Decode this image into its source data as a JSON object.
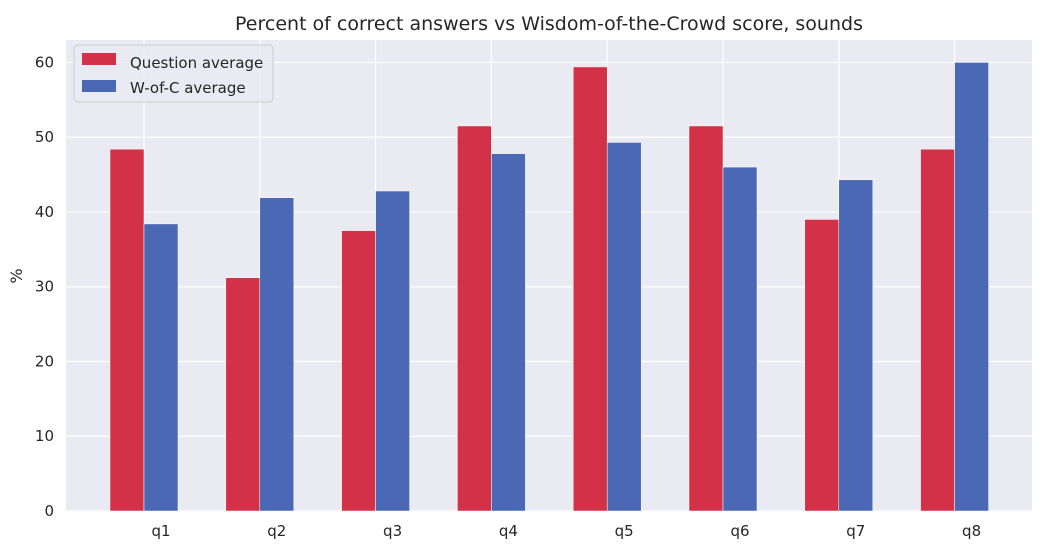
{
  "chart_data": {
    "type": "bar",
    "title": "Percent of correct answers vs Wisdom-of-the-Crowd score, sounds",
    "xlabel": "",
    "ylabel": "%",
    "categories": [
      "q1",
      "q2",
      "q3",
      "q4",
      "q5",
      "q6",
      "q7",
      "q8"
    ],
    "series": [
      {
        "name": "Question average",
        "color": "#d23147",
        "values": [
          48.4,
          31.2,
          37.5,
          51.5,
          59.4,
          51.5,
          39.0,
          48.4
        ]
      },
      {
        "name": "W-of-C average",
        "color": "#4a68b3",
        "values": [
          38.4,
          41.9,
          42.8,
          47.8,
          49.3,
          46.0,
          44.3,
          60.0
        ]
      }
    ],
    "ylim": [
      0,
      63
    ],
    "yticks": [
      0,
      10,
      20,
      30,
      40,
      50,
      60
    ],
    "grid": true,
    "legend_position": "top-left",
    "background_color": "#eaeaf2",
    "grid_color": "#ffffff"
  }
}
